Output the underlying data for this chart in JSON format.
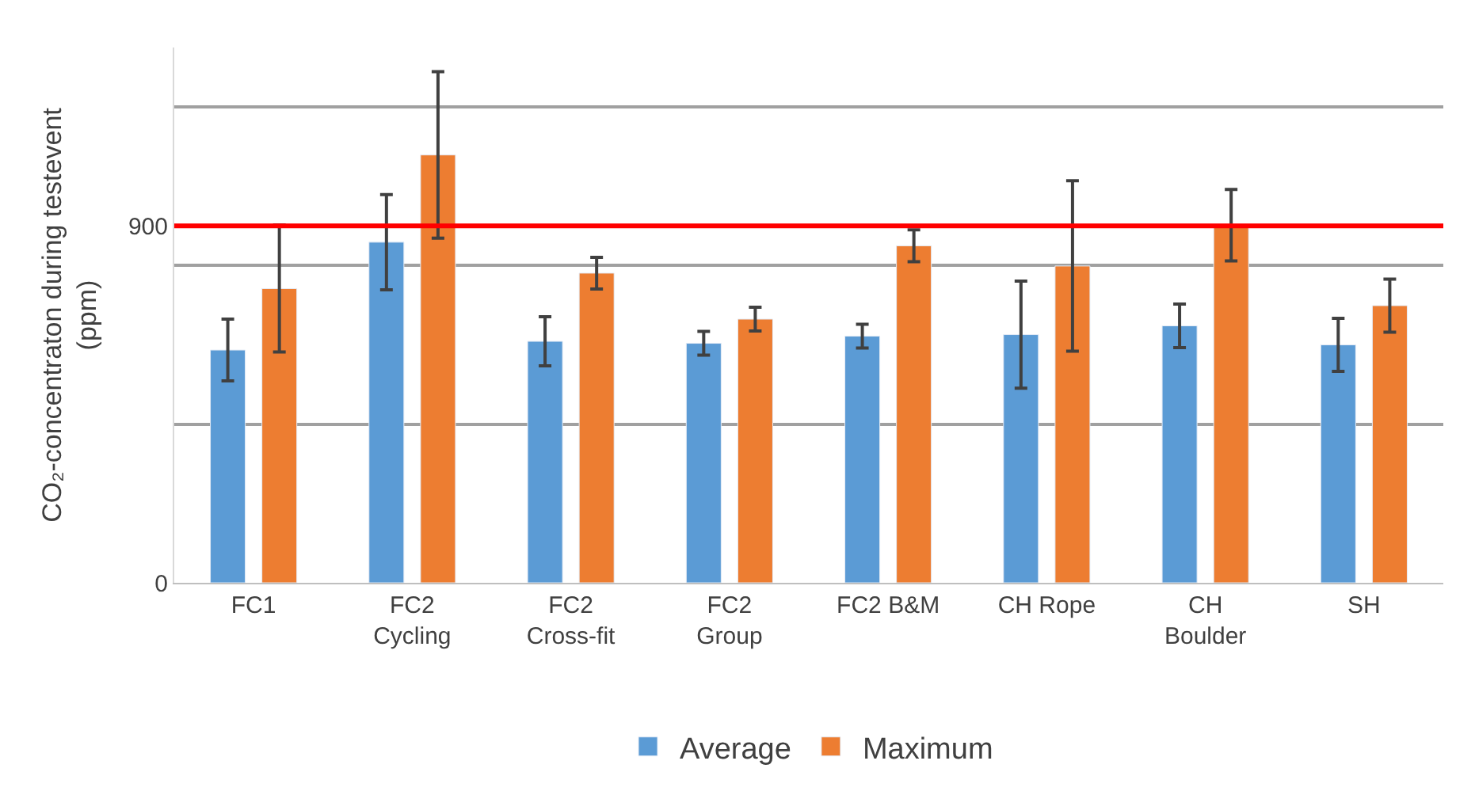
{
  "chart_data": {
    "type": "bar",
    "categories": [
      "FC1",
      "FC2\nCycling",
      "FC2\nCross-fit",
      "FC2\nGroup",
      "FC2 B&M",
      "CH Rope",
      "CH\nBoulder",
      "SH"
    ],
    "ylabel": "CO₂-concentraton during testevent\n(ppm)",
    "series": [
      {
        "name": "Average",
        "color": "#5b9bd5",
        "values": [
          587,
          859,
          609,
          604,
          622,
          626,
          648,
          600
        ],
        "errors": [
          78,
          120,
          62,
          30,
          30,
          135,
          55,
          67
        ]
      },
      {
        "name": "Maximum",
        "color": "#ed7d31",
        "values": [
          742,
          1079,
          781,
          665,
          850,
          799,
          902,
          699
        ],
        "errors": [
          160,
          210,
          40,
          30,
          40,
          215,
          90,
          67
        ]
      }
    ],
    "ylim": [
      0,
      1350
    ],
    "yticks": [
      0,
      {
        "value": 400,
        "label": null
      },
      {
        "value": 800,
        "label": null
      },
      900,
      {
        "value": 1200,
        "label": null
      }
    ],
    "ref_lines": [
      {
        "axis": "y",
        "value": 900,
        "label": null,
        "color": "#ff0000"
      }
    ],
    "grid": "y",
    "legend": "bottom"
  }
}
